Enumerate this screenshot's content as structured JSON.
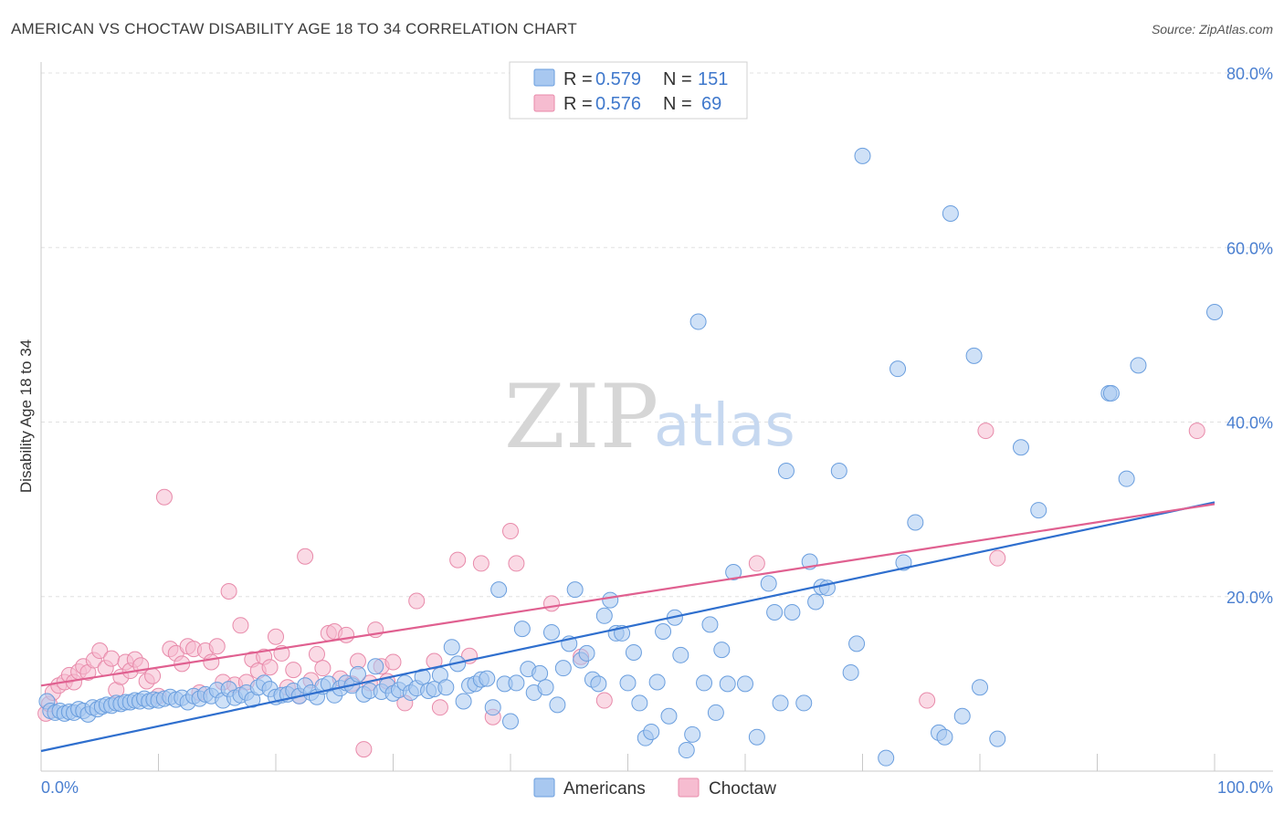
{
  "header": {
    "title": "AMERICAN VS CHOCTAW DISABILITY AGE 18 TO 34 CORRELATION CHART",
    "source": "Source: ZipAtlas.com"
  },
  "watermark": {
    "zip": "ZIP",
    "atlas": "atlas"
  },
  "legend_top": {
    "rows": [
      {
        "r_label": "R =",
        "r_value": "0.579",
        "n_label": "N =",
        "n_value": "151"
      },
      {
        "r_label": "R =",
        "r_value": "0.576",
        "n_label": "N =",
        "n_value": "69"
      }
    ]
  },
  "legend_bottom": {
    "americans": "Americans",
    "choctaw": "Choctaw"
  },
  "colors": {
    "americans_fill": "#a8c8f0",
    "americans_stroke": "#6a9ede",
    "americans_line": "#2f6fce",
    "choctaw_fill": "#f6bcd0",
    "choctaw_stroke": "#e88aaa",
    "choctaw_line": "#e06090",
    "grid": "#e0e0e0",
    "tick_label": "#4a7fd0"
  },
  "chart_data": {
    "type": "scatter",
    "title": "AMERICAN VS CHOCTAW DISABILITY AGE 18 TO 34 CORRELATION CHART",
    "xlabel": "",
    "ylabel": "Disability Age 18 to 34",
    "xlim": [
      0,
      100
    ],
    "ylim": [
      0,
      80
    ],
    "x_tick_labels": [
      "0.0%",
      "100.0%"
    ],
    "y_ticks": [
      20,
      40,
      60,
      80
    ],
    "y_tick_labels": [
      "20.0%",
      "40.0%",
      "60.0%",
      "80.0%"
    ],
    "grid": true,
    "series": [
      {
        "name": "Americans",
        "R": 0.579,
        "N": 151,
        "trend": {
          "x": [
            0,
            100
          ],
          "y": [
            2.3,
            30.8
          ]
        },
        "points": [
          [
            0.5,
            8.0
          ],
          [
            0.8,
            6.9
          ],
          [
            1.2,
            6.7
          ],
          [
            1.6,
            6.9
          ],
          [
            2.0,
            6.6
          ],
          [
            2.4,
            6.8
          ],
          [
            2.8,
            6.7
          ],
          [
            3.2,
            7.1
          ],
          [
            3.6,
            6.9
          ],
          [
            4.0,
            6.5
          ],
          [
            4.4,
            7.3
          ],
          [
            4.8,
            7.1
          ],
          [
            5.2,
            7.4
          ],
          [
            5.6,
            7.6
          ],
          [
            6.0,
            7.5
          ],
          [
            6.4,
            7.8
          ],
          [
            6.8,
            7.7
          ],
          [
            7.2,
            7.9
          ],
          [
            7.6,
            7.9
          ],
          [
            8.0,
            8.1
          ],
          [
            8.4,
            8.0
          ],
          [
            8.8,
            8.3
          ],
          [
            9.2,
            8.0
          ],
          [
            9.6,
            8.2
          ],
          [
            10.0,
            8.1
          ],
          [
            10.5,
            8.3
          ],
          [
            11.0,
            8.5
          ],
          [
            11.5,
            8.2
          ],
          [
            12.0,
            8.4
          ],
          [
            12.5,
            7.9
          ],
          [
            13.0,
            8.6
          ],
          [
            13.5,
            8.3
          ],
          [
            14.0,
            8.8
          ],
          [
            14.5,
            8.6
          ],
          [
            15.0,
            9.3
          ],
          [
            15.5,
            8.1
          ],
          [
            16.0,
            9.4
          ],
          [
            16.5,
            8.4
          ],
          [
            17.0,
            8.7
          ],
          [
            17.5,
            9.0
          ],
          [
            18.0,
            8.2
          ],
          [
            18.5,
            9.6
          ],
          [
            19.0,
            10.1
          ],
          [
            19.5,
            9.4
          ],
          [
            20.0,
            8.5
          ],
          [
            20.5,
            8.7
          ],
          [
            21.0,
            8.8
          ],
          [
            21.5,
            9.2
          ],
          [
            22.0,
            8.6
          ],
          [
            22.5,
            9.8
          ],
          [
            23.0,
            9.0
          ],
          [
            23.5,
            8.5
          ],
          [
            24.0,
            9.7
          ],
          [
            24.5,
            10.0
          ],
          [
            25.0,
            8.7
          ],
          [
            25.5,
            9.5
          ],
          [
            26.0,
            10.1
          ],
          [
            26.5,
            9.8
          ],
          [
            27.0,
            11.1
          ],
          [
            27.5,
            8.8
          ],
          [
            28.0,
            9.2
          ],
          [
            28.5,
            12.0
          ],
          [
            29.0,
            9.1
          ],
          [
            29.5,
            9.8
          ],
          [
            30.0,
            8.9
          ],
          [
            30.5,
            9.3
          ],
          [
            31.0,
            10.1
          ],
          [
            31.5,
            9.0
          ],
          [
            32.0,
            9.5
          ],
          [
            32.5,
            10.8
          ],
          [
            33.0,
            9.2
          ],
          [
            33.5,
            9.4
          ],
          [
            34.0,
            11.0
          ],
          [
            34.5,
            9.6
          ],
          [
            35.0,
            14.2
          ],
          [
            35.5,
            12.3
          ],
          [
            36.0,
            8.0
          ],
          [
            36.5,
            9.8
          ],
          [
            37.0,
            10.0
          ],
          [
            37.5,
            10.5
          ],
          [
            38.0,
            10.6
          ],
          [
            38.5,
            7.3
          ],
          [
            39.0,
            20.8
          ],
          [
            39.5,
            10.0
          ],
          [
            40.0,
            5.7
          ],
          [
            40.5,
            10.1
          ],
          [
            41.0,
            16.3
          ],
          [
            41.5,
            11.7
          ],
          [
            42.0,
            9.0
          ],
          [
            42.5,
            11.2
          ],
          [
            43.0,
            9.6
          ],
          [
            43.5,
            15.9
          ],
          [
            44.0,
            7.6
          ],
          [
            44.5,
            11.8
          ],
          [
            45.0,
            14.6
          ],
          [
            45.5,
            20.8
          ],
          [
            46.0,
            12.7
          ],
          [
            46.5,
            13.5
          ],
          [
            47.0,
            10.5
          ],
          [
            47.5,
            10.0
          ],
          [
            48.0,
            17.8
          ],
          [
            48.5,
            19.6
          ],
          [
            49.0,
            15.8
          ],
          [
            49.5,
            15.8
          ],
          [
            50.0,
            10.1
          ],
          [
            50.5,
            13.6
          ],
          [
            51.0,
            7.8
          ],
          [
            51.5,
            3.8
          ],
          [
            52.0,
            4.5
          ],
          [
            52.5,
            10.2
          ],
          [
            53.0,
            16.0
          ],
          [
            53.5,
            6.3
          ],
          [
            54.0,
            17.6
          ],
          [
            54.5,
            13.3
          ],
          [
            55.0,
            2.4
          ],
          [
            55.5,
            4.2
          ],
          [
            56.0,
            51.5
          ],
          [
            56.5,
            10.1
          ],
          [
            57.0,
            16.8
          ],
          [
            57.5,
            6.7
          ],
          [
            58.0,
            13.9
          ],
          [
            58.5,
            10.0
          ],
          [
            59.0,
            22.8
          ],
          [
            60.0,
            10.0
          ],
          [
            61.0,
            3.9
          ],
          [
            62.0,
            21.5
          ],
          [
            62.5,
            18.2
          ],
          [
            63.0,
            7.8
          ],
          [
            63.5,
            34.4
          ],
          [
            64.0,
            18.2
          ],
          [
            65.0,
            7.8
          ],
          [
            65.5,
            24.0
          ],
          [
            66.0,
            19.4
          ],
          [
            66.5,
            21.1
          ],
          [
            67.0,
            21.0
          ],
          [
            68.0,
            34.4
          ],
          [
            69.0,
            11.3
          ],
          [
            69.5,
            14.6
          ],
          [
            70.0,
            70.5
          ],
          [
            72.0,
            1.5
          ],
          [
            73.0,
            46.1
          ],
          [
            73.5,
            23.9
          ],
          [
            74.5,
            28.5
          ],
          [
            76.5,
            4.4
          ],
          [
            77.0,
            3.9
          ],
          [
            77.5,
            63.9
          ],
          [
            78.5,
            6.3
          ],
          [
            79.5,
            47.6
          ],
          [
            80.0,
            9.6
          ],
          [
            81.5,
            3.7
          ],
          [
            83.5,
            37.1
          ],
          [
            85.0,
            29.9
          ],
          [
            91.0,
            43.3
          ],
          [
            91.2,
            43.3
          ],
          [
            92.5,
            33.5
          ],
          [
            93.5,
            46.5
          ],
          [
            100.0,
            52.6
          ]
        ]
      },
      {
        "name": "Choctaw",
        "R": 0.576,
        "N": 69,
        "trend": {
          "x": [
            0,
            100
          ],
          "y": [
            9.8,
            30.6
          ]
        },
        "points": [
          [
            0.4,
            6.6
          ],
          [
            0.7,
            7.7
          ],
          [
            1.0,
            9.0
          ],
          [
            1.5,
            9.8
          ],
          [
            2.0,
            10.2
          ],
          [
            2.4,
            11.0
          ],
          [
            2.8,
            10.2
          ],
          [
            3.2,
            11.4
          ],
          [
            3.6,
            12.0
          ],
          [
            4.0,
            11.3
          ],
          [
            4.5,
            12.7
          ],
          [
            5.0,
            13.8
          ],
          [
            5.5,
            11.8
          ],
          [
            6.0,
            12.9
          ],
          [
            6.4,
            9.3
          ],
          [
            6.8,
            10.8
          ],
          [
            7.2,
            12.5
          ],
          [
            7.6,
            11.5
          ],
          [
            8.0,
            12.8
          ],
          [
            8.5,
            12.1
          ],
          [
            9.0,
            10.3
          ],
          [
            9.5,
            10.9
          ],
          [
            10.0,
            8.6
          ],
          [
            10.5,
            31.4
          ],
          [
            11.0,
            14.0
          ],
          [
            11.5,
            13.5
          ],
          [
            12.0,
            12.3
          ],
          [
            12.5,
            14.3
          ],
          [
            13.0,
            14.0
          ],
          [
            13.5,
            9.0
          ],
          [
            14.0,
            13.8
          ],
          [
            14.5,
            12.5
          ],
          [
            15.0,
            14.3
          ],
          [
            15.5,
            10.2
          ],
          [
            16.0,
            20.6
          ],
          [
            16.5,
            9.9
          ],
          [
            17.0,
            16.7
          ],
          [
            17.5,
            10.2
          ],
          [
            18.0,
            12.8
          ],
          [
            18.5,
            11.5
          ],
          [
            19.0,
            13.1
          ],
          [
            19.5,
            11.9
          ],
          [
            20.0,
            15.4
          ],
          [
            20.5,
            13.5
          ],
          [
            21.0,
            9.6
          ],
          [
            21.5,
            11.6
          ],
          [
            22.0,
            8.6
          ],
          [
            22.5,
            24.6
          ],
          [
            23.0,
            10.4
          ],
          [
            23.5,
            13.4
          ],
          [
            24.0,
            11.8
          ],
          [
            24.5,
            15.8
          ],
          [
            25.0,
            16.0
          ],
          [
            25.5,
            10.6
          ],
          [
            26.0,
            15.6
          ],
          [
            26.5,
            10.0
          ],
          [
            27.0,
            12.6
          ],
          [
            27.5,
            2.5
          ],
          [
            28.0,
            10.1
          ],
          [
            28.5,
            16.2
          ],
          [
            29.0,
            12.0
          ],
          [
            29.5,
            10.3
          ],
          [
            30.0,
            12.5
          ],
          [
            31.0,
            7.8
          ],
          [
            32.0,
            19.5
          ],
          [
            33.5,
            12.6
          ],
          [
            34.0,
            7.3
          ],
          [
            35.5,
            24.2
          ],
          [
            36.5,
            13.2
          ],
          [
            37.5,
            23.8
          ],
          [
            38.5,
            6.2
          ],
          [
            40.0,
            27.5
          ],
          [
            40.5,
            23.8
          ],
          [
            43.5,
            19.2
          ],
          [
            46.0,
            13.1
          ],
          [
            48.0,
            8.1
          ],
          [
            61.0,
            23.8
          ],
          [
            75.5,
            8.1
          ],
          [
            80.5,
            39.0
          ],
          [
            81.5,
            24.4
          ],
          [
            98.5,
            39.0
          ]
        ]
      }
    ]
  }
}
